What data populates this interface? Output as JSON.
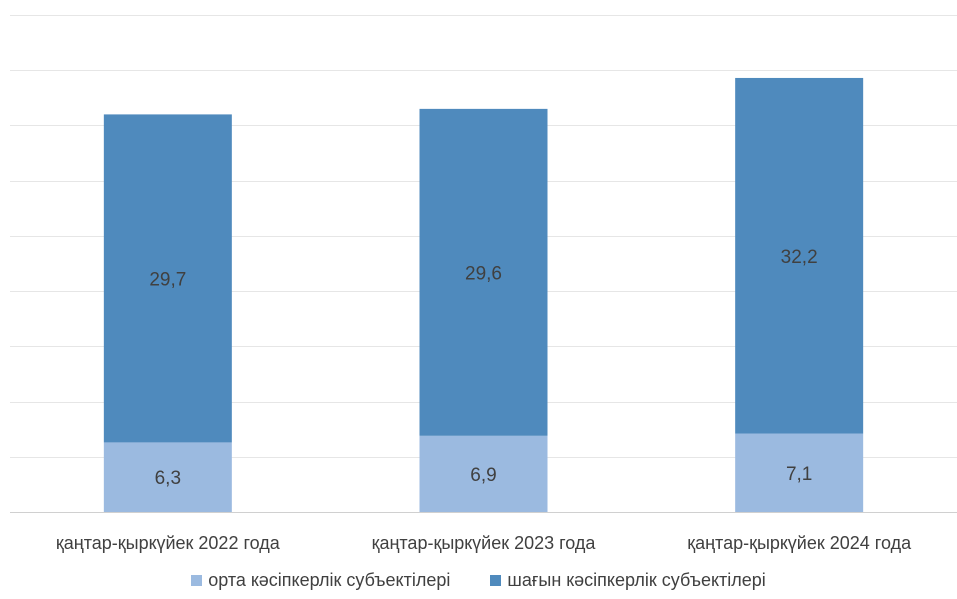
{
  "chart_data": {
    "type": "bar",
    "stacked": true,
    "categories": [
      "қаңтар-қыркүйек 2022 года",
      "қаңтар-қыркүйек 2023 года",
      "қаңтар-қыркүйек 2024 года"
    ],
    "series": [
      {
        "name": "орта кәсіпкерлік субъектілері",
        "values": [
          6.3,
          6.9,
          7.1
        ],
        "labels": [
          "6,3",
          "6,9",
          "7,1"
        ],
        "color": "#9bbae0"
      },
      {
        "name": "шағын кәсіпкерлік субъектілері",
        "values": [
          29.7,
          29.6,
          32.2
        ],
        "labels": [
          "29,7",
          "29,6",
          "32,2"
        ],
        "color": "#4f8abd"
      }
    ],
    "ylim": [
      0,
      45
    ],
    "grid": true,
    "legend_position": "bottom"
  }
}
